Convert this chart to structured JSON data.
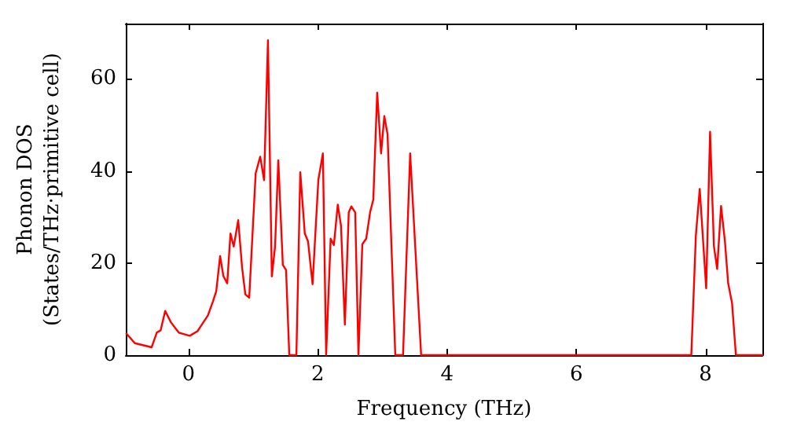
{
  "chart_data": {
    "type": "line",
    "xlabel": "Frequency (THz)",
    "ylabel": "Phonon DOS\n(States/THz·primitive cell)",
    "xlim": [
      -0.97,
      8.88
    ],
    "ylim": [
      0,
      72
    ],
    "xticks": [
      0,
      2,
      4,
      6,
      8
    ],
    "yticks": [
      0,
      20,
      40,
      60
    ],
    "grid": false,
    "marker": "none",
    "line_style": "solid",
    "series": [
      {
        "color": "#ff0000",
        "x": [
          -0.96,
          -0.83,
          -0.57,
          -0.49,
          -0.43,
          -0.36,
          -0.27,
          -0.15,
          0.02,
          0.14,
          0.3,
          0.38,
          0.43,
          0.49,
          0.54,
          0.6,
          0.65,
          0.7,
          0.77,
          0.83,
          0.88,
          0.94,
          1.04,
          1.11,
          1.17,
          1.23,
          1.29,
          1.34,
          1.39,
          1.46,
          1.51,
          1.56,
          1.67,
          1.73,
          1.8,
          1.85,
          1.92,
          2.01,
          2.08,
          2.13,
          2.2,
          2.25,
          2.31,
          2.36,
          2.42,
          2.48,
          2.52,
          2.58,
          2.63,
          2.69,
          2.75,
          2.81,
          2.86,
          2.92,
          2.98,
          3.03,
          3.08,
          3.2,
          3.32,
          3.43,
          3.6,
          7.78,
          7.85,
          7.91,
          8.01,
          8.07,
          8.13,
          8.18,
          8.24,
          8.3,
          8.35,
          8.41,
          8.47,
          8.88
        ],
        "values": [
          4.7,
          2.6,
          1.7,
          4.9,
          5.4,
          9.6,
          7.1,
          4.9,
          4.2,
          5.2,
          8.6,
          11.7,
          13.9,
          21.5,
          17.2,
          15.6,
          26.4,
          23.6,
          29.3,
          19,
          13.2,
          12.5,
          39.5,
          43.1,
          38,
          68.4,
          17.1,
          23.6,
          42.3,
          19.6,
          18.5,
          0,
          0,
          39.7,
          26.4,
          24.7,
          15.4,
          38.1,
          43.8,
          0,
          25.3,
          23.9,
          32.7,
          28.1,
          6.6,
          31,
          32.3,
          31,
          0,
          24.1,
          25.3,
          31,
          33.8,
          57,
          43.8,
          51.9,
          48,
          0,
          0,
          43.8,
          0,
          0,
          25.9,
          36.1,
          14.5,
          48.5,
          23.6,
          18.7,
          32.4,
          24.7,
          15.6,
          11.3,
          0,
          0
        ]
      }
    ]
  }
}
